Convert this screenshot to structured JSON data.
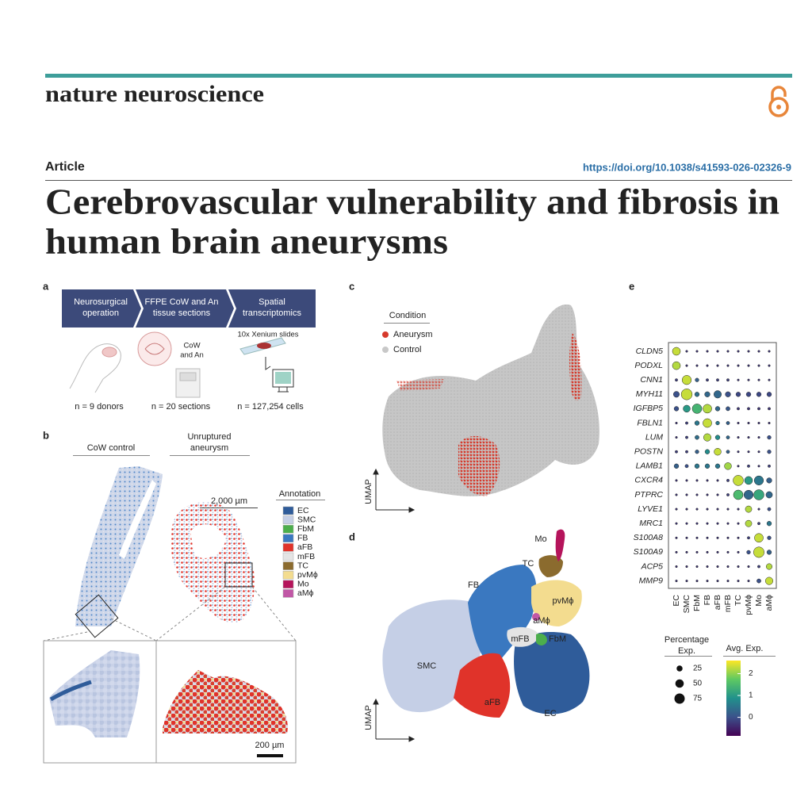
{
  "header": {
    "journal": "nature neuroscience",
    "article_type": "Article",
    "doi": "https://doi.org/10.1038/s41593-026-02326-9"
  },
  "title": [
    "Cerebrovascular vulnerability and fibrosis in",
    "human brain aneurysms"
  ],
  "panels": {
    "a": {
      "letter": "a",
      "steps": [
        [
          "Neurosurgical",
          "operation"
        ],
        [
          "FFPE CoW and An",
          "tissue sections"
        ],
        [
          "Spatial",
          "transcriptomics"
        ]
      ],
      "cow_label": [
        "CoW",
        "and An"
      ],
      "xenium_label": "10x Xenium slides",
      "counts": [
        "n = 9 donors",
        "n = 20 sections",
        "n = 127,254 cells"
      ]
    },
    "b": {
      "letter": "b",
      "cow_control": "CoW control",
      "aneurysm": [
        "Unruptured",
        "aneurysm"
      ],
      "scale_large": "2,000 µm",
      "scale_small": "200 µm",
      "legend_title": "Annotation",
      "annotations": [
        {
          "name": "EC",
          "color": "#2f5c9a"
        },
        {
          "name": "SMC",
          "color": "#c5cfe6"
        },
        {
          "name": "FbM",
          "color": "#4cae4c"
        },
        {
          "name": "FB",
          "color": "#3a78c0"
        },
        {
          "name": "aFB",
          "color": "#e0332a"
        },
        {
          "name": "mFB",
          "color": "#e4e4e4"
        },
        {
          "name": "TC",
          "color": "#8b6b2e"
        },
        {
          "name": "pvMϕ",
          "color": "#f3dc8f"
        },
        {
          "name": "Mo",
          "color": "#b5145b"
        },
        {
          "name": "aMϕ",
          "color": "#c157a6"
        }
      ]
    },
    "c": {
      "letter": "c",
      "legend_title": "Condition",
      "conditions": [
        {
          "name": "Aneurysm",
          "color": "#d63a2c"
        },
        {
          "name": "Control",
          "color": "#c8c8c8"
        }
      ],
      "axis_label": "UMAP"
    },
    "d": {
      "letter": "d",
      "clusters": [
        "Mo",
        "TC",
        "FB",
        "pvMϕ",
        "aMϕ",
        "mFB",
        "FbM",
        "SMC",
        "aFB",
        "EC"
      ],
      "axis_label": "UMAP"
    },
    "e": {
      "letter": "e",
      "genes": [
        "CLDN5",
        "PODXL",
        "CNN1",
        "MYH11",
        "IGFBP5",
        "FBLN1",
        "LUM",
        "POSTN",
        "LAMB1",
        "CXCR4",
        "PTPRC",
        "LYVE1",
        "MRC1",
        "S100A8",
        "S100A9",
        "ACP5",
        "MMP9"
      ],
      "cell_types": [
        "EC",
        "SMC",
        "FbM",
        "FB",
        "aFB",
        "mFB",
        "TC",
        "pvMϕ",
        "Mo",
        "aMϕ"
      ],
      "pct": [
        [
          45,
          3,
          3,
          3,
          3,
          3,
          3,
          3,
          3,
          3
        ],
        [
          45,
          3,
          3,
          3,
          3,
          3,
          3,
          3,
          3,
          3
        ],
        [
          5,
          60,
          10,
          5,
          5,
          5,
          3,
          3,
          3,
          3
        ],
        [
          25,
          85,
          15,
          20,
          40,
          20,
          15,
          15,
          15,
          15
        ],
        [
          15,
          35,
          65,
          55,
          15,
          12,
          5,
          5,
          5,
          5
        ],
        [
          3,
          5,
          15,
          55,
          10,
          8,
          3,
          3,
          3,
          3
        ],
        [
          3,
          5,
          12,
          40,
          15,
          8,
          3,
          3,
          3,
          10
        ],
        [
          5,
          5,
          10,
          15,
          35,
          8,
          3,
          3,
          3,
          10
        ],
        [
          15,
          8,
          15,
          15,
          15,
          35,
          3,
          5,
          3,
          5
        ],
        [
          3,
          3,
          3,
          3,
          3,
          5,
          75,
          45,
          60,
          20
        ],
        [
          3,
          3,
          3,
          3,
          3,
          5,
          65,
          60,
          75,
          30
        ],
        [
          3,
          3,
          3,
          3,
          3,
          3,
          3,
          30,
          3,
          8
        ],
        [
          3,
          3,
          3,
          3,
          3,
          3,
          3,
          30,
          5,
          15
        ],
        [
          3,
          3,
          3,
          3,
          3,
          3,
          3,
          5,
          55,
          10
        ],
        [
          3,
          3,
          3,
          3,
          3,
          3,
          3,
          10,
          80,
          15
        ],
        [
          3,
          3,
          3,
          3,
          3,
          3,
          3,
          3,
          5,
          25
        ],
        [
          3,
          3,
          3,
          3,
          3,
          3,
          3,
          3,
          12,
          40
        ]
      ],
      "avg": [
        [
          2.3,
          -0.3,
          -0.3,
          -0.3,
          -0.3,
          -0.3,
          -0.3,
          -0.3,
          -0.3,
          -0.3
        ],
        [
          2.2,
          -0.3,
          -0.3,
          -0.3,
          -0.3,
          -0.3,
          -0.3,
          -0.3,
          -0.3,
          -0.3
        ],
        [
          -0.2,
          2.3,
          0.2,
          -0.2,
          -0.2,
          -0.2,
          -0.3,
          -0.3,
          -0.3,
          -0.3
        ],
        [
          0,
          2.3,
          0.4,
          0.3,
          0.3,
          0,
          -0.1,
          -0.1,
          -0.1,
          -0.1
        ],
        [
          0,
          1.0,
          1.4,
          2.2,
          0.3,
          0.1,
          -0.3,
          -0.3,
          -0.3,
          -0.3
        ],
        [
          -0.3,
          -0.2,
          0.5,
          2.3,
          0.5,
          0.2,
          -0.3,
          -0.3,
          -0.3,
          -0.3
        ],
        [
          -0.3,
          -0.2,
          0.4,
          2.2,
          0.8,
          0.3,
          -0.3,
          -0.3,
          -0.3,
          0
        ],
        [
          -0.2,
          -0.2,
          0.2,
          0.8,
          2.3,
          0.2,
          -0.3,
          -0.3,
          -0.3,
          0
        ],
        [
          0.2,
          0,
          0.5,
          0.5,
          0.5,
          2.1,
          -0.3,
          -0.2,
          -0.3,
          -0.2
        ],
        [
          -0.3,
          -0.3,
          -0.3,
          -0.3,
          -0.3,
          -0.2,
          2.3,
          1.0,
          0.5,
          0.2
        ],
        [
          -0.3,
          -0.3,
          -0.3,
          -0.3,
          -0.3,
          -0.2,
          1.5,
          0.3,
          1.2,
          0.3
        ],
        [
          -0.3,
          -0.3,
          -0.3,
          -0.3,
          -0.3,
          -0.3,
          -0.3,
          2.2,
          -0.3,
          0
        ],
        [
          -0.3,
          -0.3,
          -0.3,
          -0.3,
          -0.3,
          -0.3,
          -0.3,
          2.2,
          -0.2,
          0.5
        ],
        [
          -0.3,
          -0.3,
          -0.3,
          -0.3,
          -0.3,
          -0.3,
          -0.3,
          -0.2,
          2.3,
          0
        ],
        [
          -0.3,
          -0.3,
          -0.3,
          -0.3,
          -0.3,
          -0.3,
          -0.3,
          0,
          2.3,
          0.2
        ],
        [
          -0.3,
          -0.3,
          -0.3,
          -0.3,
          -0.3,
          -0.3,
          -0.3,
          -0.3,
          -0.2,
          2.2
        ],
        [
          -0.3,
          -0.3,
          -0.3,
          -0.3,
          -0.3,
          -0.3,
          -0.3,
          -0.3,
          0,
          2.3
        ]
      ],
      "size_legend_title": [
        "Percentage",
        "Exp."
      ],
      "size_ticks": [
        25,
        50,
        75
      ],
      "color_legend_title": "Avg. Exp.",
      "color_ticks": [
        2,
        1,
        0
      ],
      "clim": [
        -0.85,
        2.6
      ]
    }
  }
}
